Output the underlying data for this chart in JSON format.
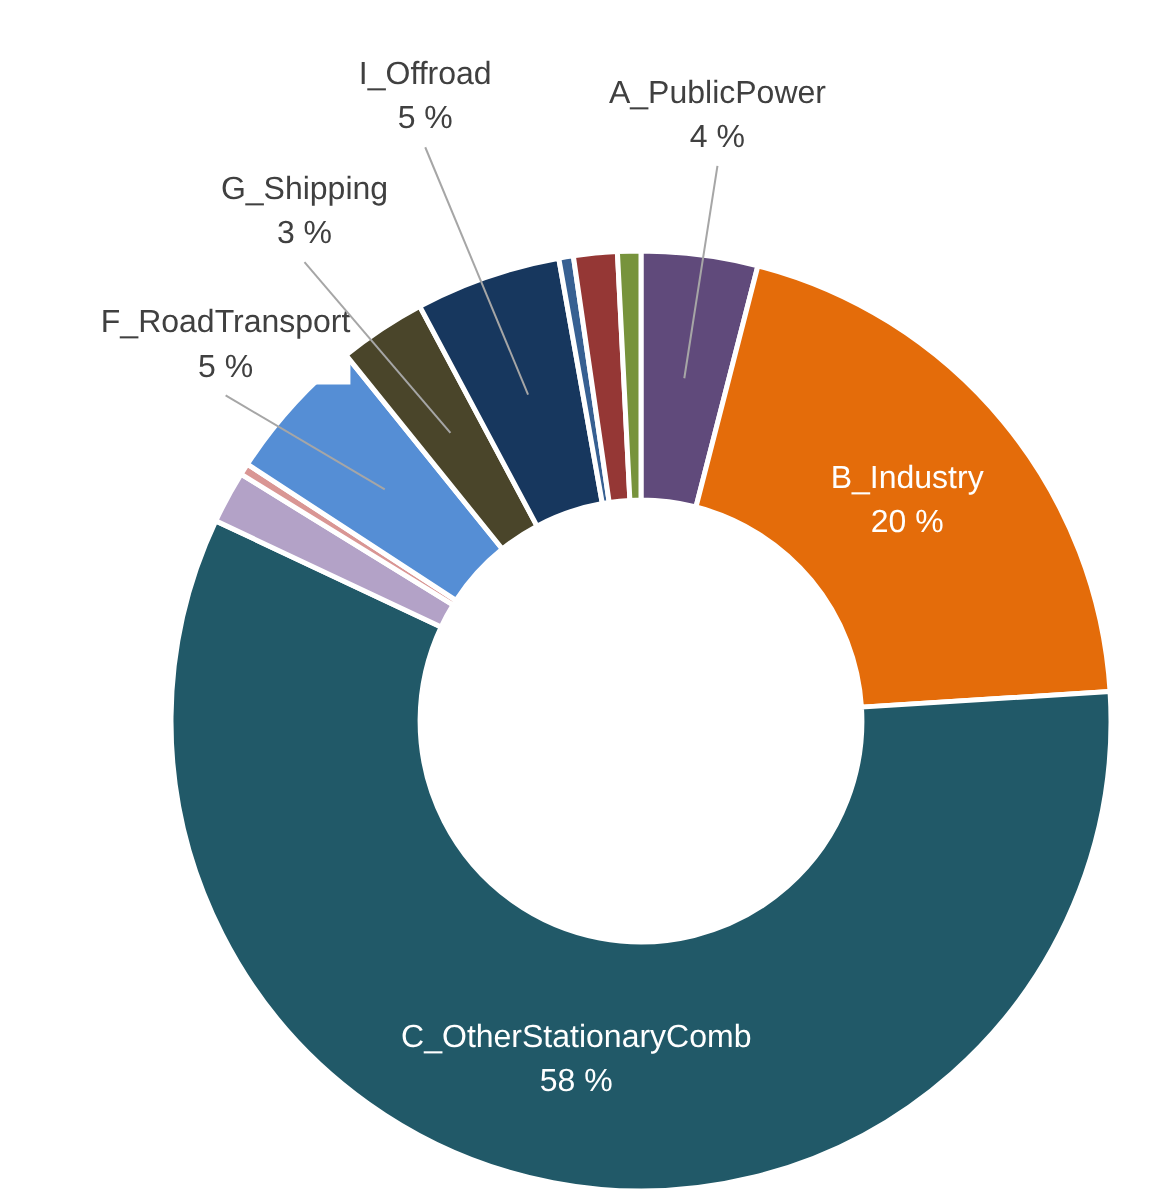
{
  "chart_data": {
    "type": "donut",
    "categories": [
      "A_PublicPower",
      "B_Industry",
      "C_OtherStationaryComb",
      null,
      null,
      "F_RoadTransport",
      "G_Shipping",
      "I_Offroad",
      null,
      null,
      null
    ],
    "values": [
      4,
      20,
      58,
      1.8,
      0.4,
      5,
      3,
      5,
      0.5,
      1.5,
      0.8
    ],
    "value_labels": [
      "4 %",
      "20 %",
      "58 %",
      null,
      null,
      "5 %",
      "3 %",
      "5 %",
      null,
      null,
      null
    ],
    "colors": [
      "#604a7b",
      "#e46c0a",
      "#215968",
      "#b3a2c7",
      "#d99694",
      "#558ed5",
      "#4a452a",
      "#17375e",
      "#376092",
      "#953735",
      "#77933c"
    ]
  }
}
